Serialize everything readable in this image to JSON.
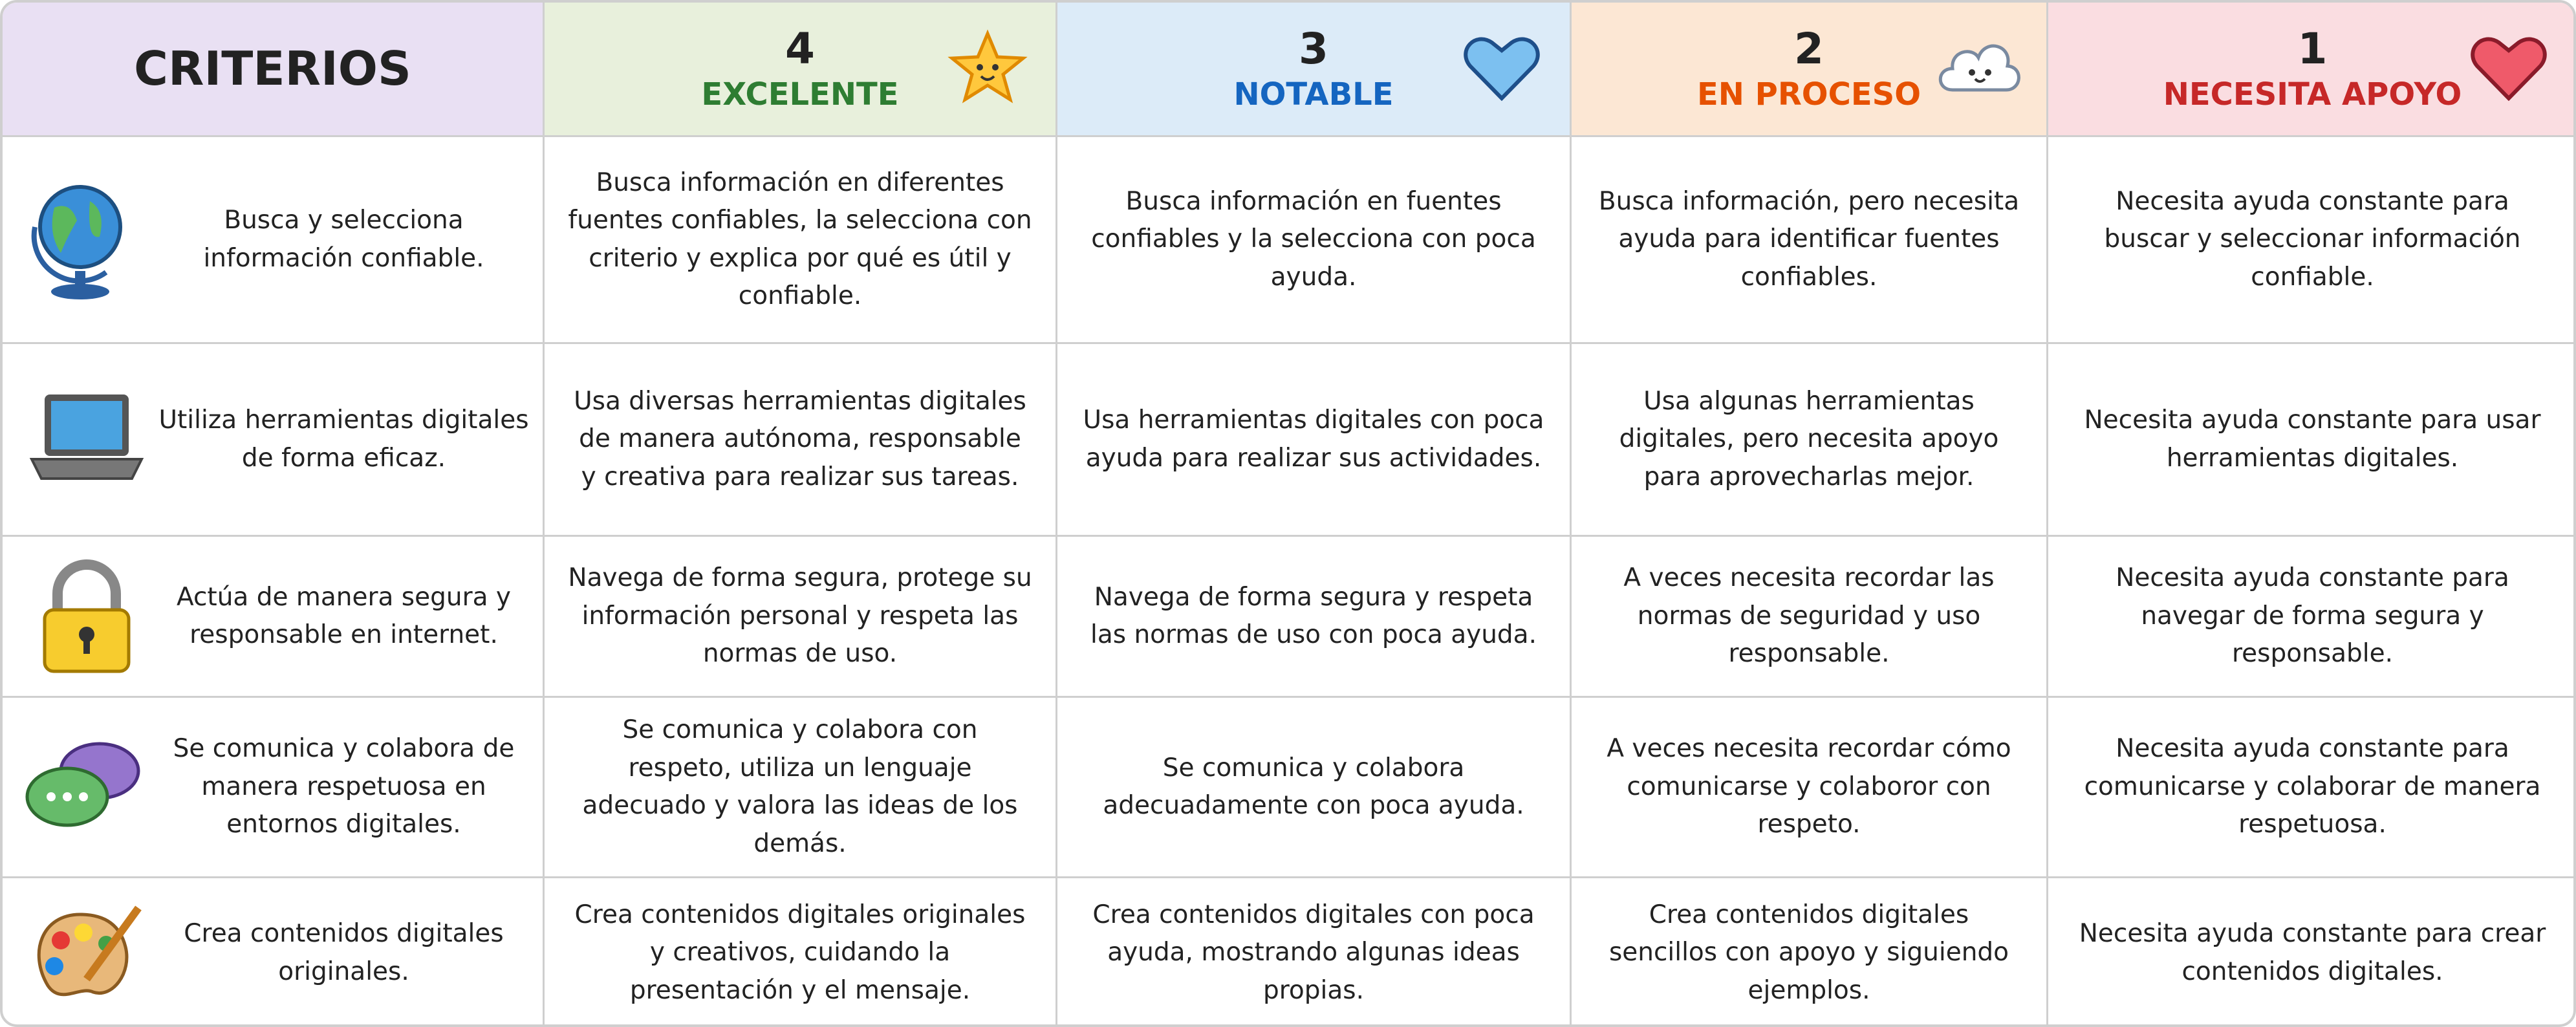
{
  "header": {
    "criterios": "CRITERIOS",
    "levels": [
      {
        "number": 4,
        "label": "EXCELENTE"
      },
      {
        "number": 3,
        "label": "NOTABLE"
      },
      {
        "number": 2,
        "label": "EN PROCESO"
      },
      {
        "number": 1,
        "label": "NECESITA APOYO"
      }
    ]
  },
  "rows": [
    {
      "criterion": "Busca y selecciona información confiable.",
      "cells": [
        "Busca información en diferentes fuentes confiables, la selecciona con criterio y explica por qué es útil y confiable.",
        "Busca información en fuentes confiables y la selecciona con poca ayuda.",
        "Busca información, pero necesita ayuda para identificar fuentes confiables.",
        "Necesita ayuda constante para buscar y seleccionar información confiable."
      ]
    },
    {
      "criterion": "Utiliza herramientas digitales de forma eficaz.",
      "cells": [
        "Usa diversas herramientas digitales de manera autónoma, responsable y creativa para realizar sus tareas.",
        "Usa herramientas digitales con poca ayuda para realizar sus actividades.",
        "Usa algunas herramientas digitales, pero necesita apoyo para aprovecharlas mejor.",
        "Necesita ayuda constante para usar herramientas digitales."
      ]
    },
    {
      "criterion": "Actúa de manera segura y responsable en internet.",
      "cells": [
        "Navega de forma segura, protege su información personal y respeta las normas de uso.",
        "Navega de forma segura y respeta las normas de uso con poca ayuda.",
        "A veces necesita recordar las normas de seguridad y uso responsable.",
        "Necesita ayuda constante para navegar de forma segura y responsable."
      ]
    },
    {
      "criterion": "Se comunica y colabora de manera respetuosa en entornos digitales.",
      "cells": [
        "Se comunica y colabora con respeto, utiliza un lenguaje adecuado y valora las ideas de los demás.",
        "Se comunica y colabora adecuadamente con poca ayuda.",
        "A veces necesita recordar cómo comunicarse y colaboror con respeto.",
        "Necesita ayuda constante para comunicarse y colaborar de manera respetuosa."
      ]
    },
    {
      "criterion": "Crea contenidos digitales originales.",
      "cells": [
        "Crea contenidos digitales originales y creativos, cuidando la presentación y el mensaje.",
        "Crea contenidos digitales con poca ayuda, mostrando algunas ideas propias.",
        "Crea contenidos digitales sencillos con apoyo y siguiendo ejemplos.",
        "Necesita ayuda constante para crear contenidos digitales."
      ]
    }
  ]
}
